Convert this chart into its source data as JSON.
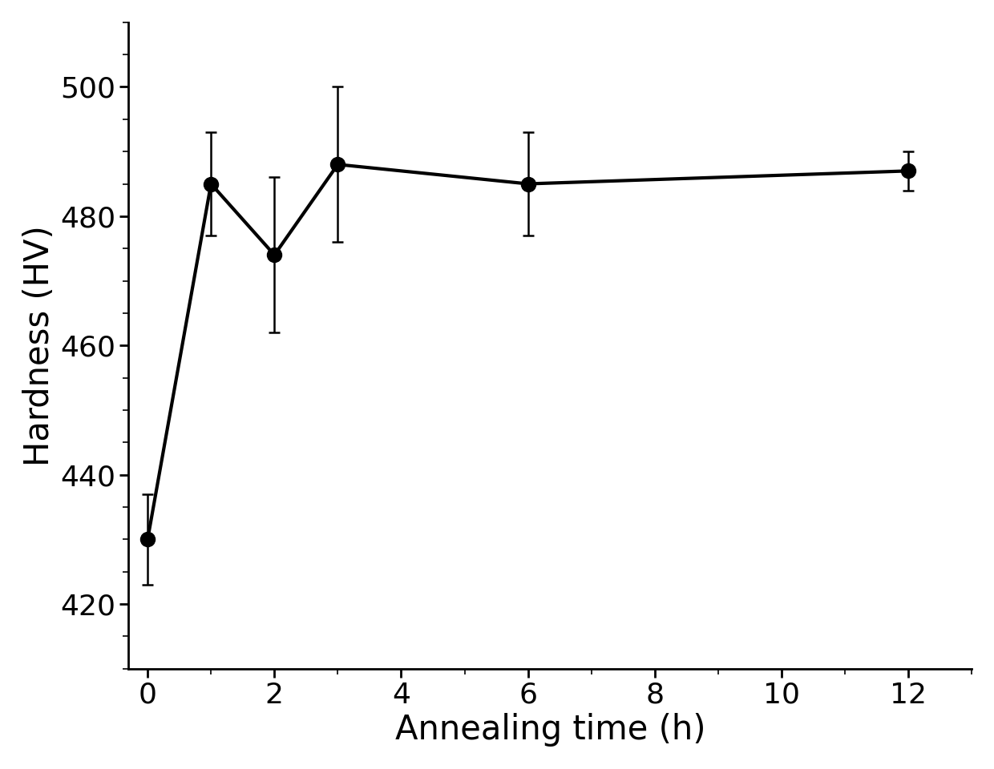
{
  "x": [
    0,
    1,
    2,
    3,
    6,
    12
  ],
  "y": [
    430,
    485,
    474,
    488,
    485,
    487
  ],
  "yerr": [
    7,
    8,
    12,
    12,
    8,
    3
  ],
  "xlabel": "Annealing time (h)",
  "ylabel": "Hardness (HV)",
  "xlim": [
    -0.3,
    13
  ],
  "ylim": [
    410,
    510
  ],
  "yticks": [
    420,
    440,
    460,
    480,
    500
  ],
  "xticks": [
    0,
    2,
    4,
    6,
    8,
    10,
    12
  ],
  "line_color": "#000000",
  "marker_color": "#000000",
  "marker_size": 13,
  "linewidth": 3.0,
  "capsize": 5,
  "elinewidth": 1.8,
  "xlabel_fontsize": 30,
  "ylabel_fontsize": 30,
  "tick_fontsize": 26,
  "background_color": "#ffffff"
}
